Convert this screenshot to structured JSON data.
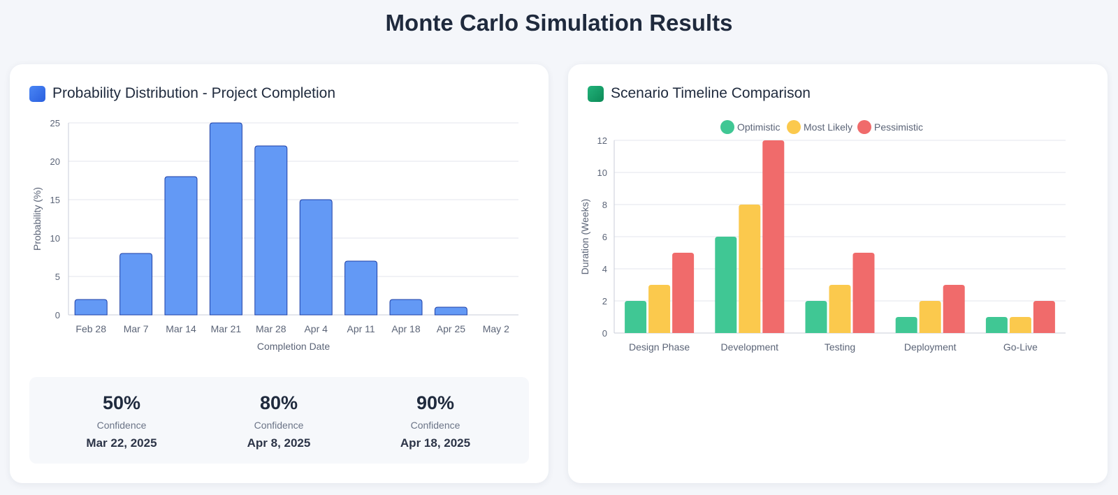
{
  "page": {
    "title": "Monte Carlo Simulation Results"
  },
  "left_card": {
    "title": "Probability Distribution - Project Completion",
    "icon": "blue-square-icon",
    "accent": "#3b78ee"
  },
  "right_card": {
    "title": "Scenario Timeline Comparison",
    "icon": "green-square-icon",
    "accent": "#119a62"
  },
  "stats": [
    {
      "value": "50%",
      "label": "Confidence",
      "date": "Mar 22, 2025"
    },
    {
      "value": "80%",
      "label": "Confidence",
      "date": "Apr 8, 2025"
    },
    {
      "value": "90%",
      "label": "Confidence",
      "date": "Apr 18, 2025"
    }
  ],
  "chart_data": [
    {
      "type": "bar",
      "title": "Probability Distribution - Project Completion",
      "categories": [
        "Feb 28",
        "Mar 7",
        "Mar 14",
        "Mar 21",
        "Mar 28",
        "Apr 4",
        "Apr 11",
        "Apr 18",
        "Apr 25",
        "May 2"
      ],
      "values": [
        2,
        8,
        18,
        25,
        22,
        15,
        7,
        2,
        1,
        0
      ],
      "xlabel": "Completion Date",
      "ylabel": "Probability (%)",
      "ylim": [
        0,
        25
      ],
      "yticks": [
        0,
        5,
        10,
        15,
        20,
        25
      ],
      "grid": true,
      "legend": "none",
      "colors": {
        "fill": "#6399f5",
        "stroke": "#1d3fa6"
      }
    },
    {
      "type": "bar",
      "title": "Scenario Timeline Comparison",
      "categories": [
        "Design Phase",
        "Development",
        "Testing",
        "Deployment",
        "Go-Live"
      ],
      "series": [
        {
          "name": "Optimistic",
          "values": [
            2,
            6,
            2,
            1,
            1
          ],
          "color": "#40c794"
        },
        {
          "name": "Most Likely",
          "values": [
            3,
            8,
            3,
            2,
            1
          ],
          "color": "#fbc94d"
        },
        {
          "name": "Pessimistic",
          "values": [
            5,
            12,
            5,
            3,
            2
          ],
          "color": "#f06b6b"
        }
      ],
      "xlabel": "",
      "ylabel": "Duration (Weeks)",
      "ylim": [
        0,
        12
      ],
      "yticks": [
        0,
        2,
        4,
        6,
        8,
        10,
        12
      ],
      "grid": true,
      "legend": "top-center"
    }
  ]
}
